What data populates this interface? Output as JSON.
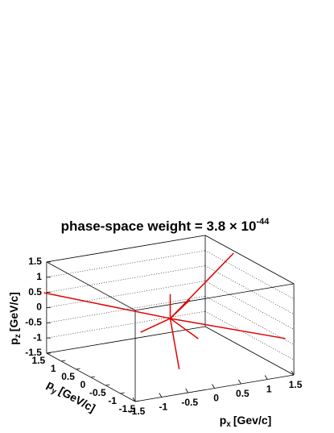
{
  "chart_data": {
    "type": "line3d",
    "title": "phase-space weight = 3.8 × 10",
    "title_exponent": "-44",
    "x_label": {
      "symbol": "p",
      "subscript": "x",
      "unit": "[Gev/c]"
    },
    "y_label": {
      "symbol": "p",
      "subscript": "y",
      "unit": "[GeV/c]"
    },
    "z_label": {
      "symbol": "p",
      "subscript": "z",
      "unit": "[GeV/c]"
    },
    "xlim": [
      -1.5,
      1.5
    ],
    "ylim": [
      -1.5,
      1.5
    ],
    "zlim": [
      -1.5,
      1.5
    ],
    "xticks": [
      -1.5,
      -1,
      -0.5,
      0,
      0.5,
      1,
      1.5
    ],
    "yticks": [
      -1.5,
      -1,
      -0.5,
      0,
      0.5,
      1,
      1.5
    ],
    "zticks": [
      -1.5,
      -1,
      -0.5,
      0,
      0.5,
      1,
      1.5
    ],
    "grid": true,
    "tracks": {
      "color": "#e00000",
      "px": [
        1.2,
        -1.55,
        1.73,
        0.17,
        0,
        -0.56,
        0.53,
        0.37
      ],
      "py": [
        0,
        1.5,
        -0.8,
        0,
        0,
        0,
        0,
        0
      ],
      "pz": [
        1.8,
        0.5,
        -0.74,
        -1.72,
        0.8,
        -0.29,
        -0.82,
        0.5
      ]
    }
  }
}
